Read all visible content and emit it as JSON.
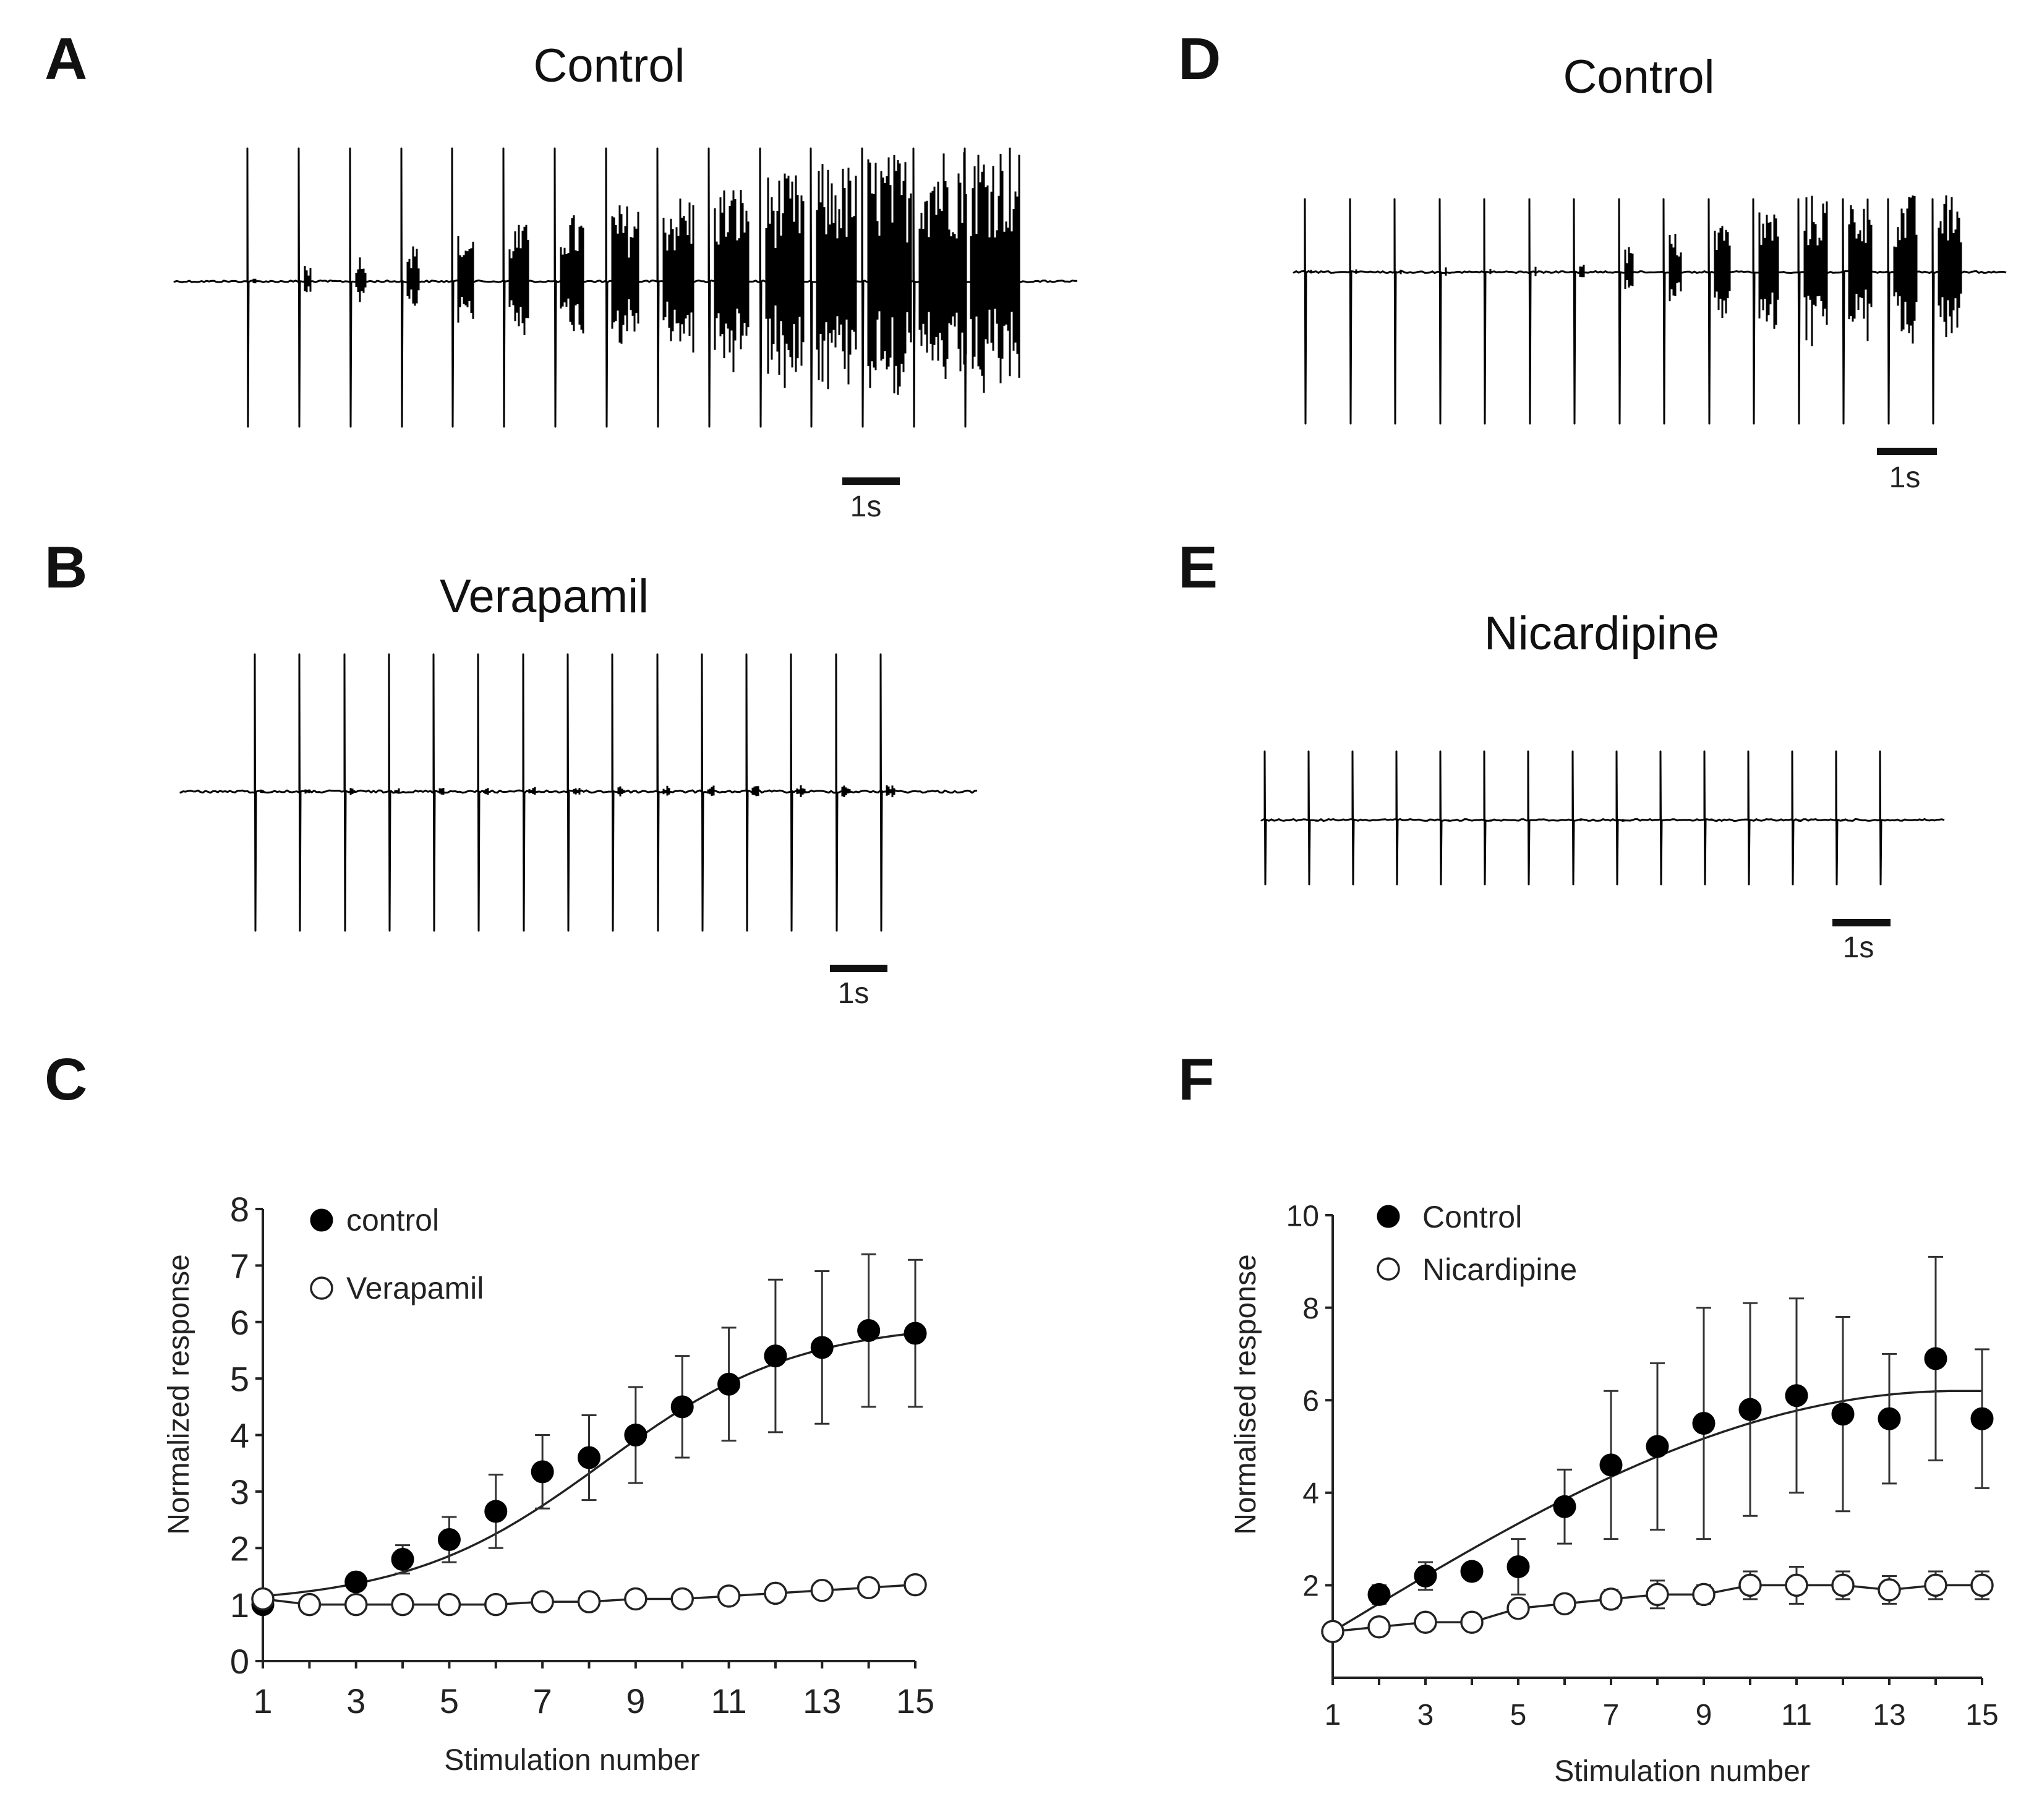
{
  "panels": {
    "A": {
      "letter": "A",
      "title": "Control",
      "scale_label": "1s"
    },
    "B": {
      "letter": "B",
      "title": "Verapamil",
      "scale_label": "1s"
    },
    "C": {
      "letter": "C"
    },
    "D": {
      "letter": "D",
      "title": "Control",
      "scale_label": "1s"
    },
    "E": {
      "letter": "E",
      "title": "Nicardipine",
      "scale_label": "1s"
    },
    "F": {
      "letter": "F"
    }
  },
  "chart_data": [
    {
      "panel": "C",
      "type": "scatter",
      "title": "",
      "xlabel": "Stimulation number",
      "ylabel": "Normalized response",
      "xlim": [
        1,
        15
      ],
      "ylim": [
        0,
        8
      ],
      "xticks": [
        1,
        3,
        5,
        7,
        9,
        11,
        13,
        15
      ],
      "yticks": [
        0,
        1,
        2,
        3,
        4,
        5,
        6,
        7,
        8
      ],
      "legend": "top-left",
      "fit_curve": "sigmoid",
      "x": [
        1,
        2,
        3,
        4,
        5,
        6,
        7,
        8,
        9,
        10,
        11,
        12,
        13,
        14,
        15
      ],
      "series": [
        {
          "name": "control",
          "marker": "filled-circle",
          "values": [
            1.0,
            1.0,
            1.4,
            1.8,
            2.15,
            2.65,
            3.35,
            3.6,
            4.0,
            4.5,
            4.9,
            5.4,
            5.55,
            5.85,
            5.8
          ],
          "errors": [
            0,
            0,
            0,
            0.25,
            0.4,
            0.65,
            0.65,
            0.75,
            0.85,
            0.9,
            1.0,
            1.35,
            1.35,
            1.35,
            1.3
          ]
        },
        {
          "name": "Verapamil",
          "marker": "open-circle",
          "values": [
            1.1,
            1.0,
            1.0,
            1.0,
            1.0,
            1.0,
            1.05,
            1.05,
            1.1,
            1.1,
            1.15,
            1.2,
            1.25,
            1.3,
            1.35
          ],
          "errors": [
            0,
            0,
            0,
            0,
            0,
            0,
            0,
            0,
            0,
            0,
            0,
            0,
            0,
            0,
            0
          ]
        }
      ]
    },
    {
      "panel": "F",
      "type": "scatter",
      "title": "",
      "xlabel": "Stimulation number",
      "ylabel": "Normalised response",
      "xlim": [
        1,
        15
      ],
      "ylim": [
        0,
        10
      ],
      "xticks": [
        1,
        3,
        5,
        7,
        9,
        11,
        13,
        15
      ],
      "yticks": [
        2,
        4,
        6,
        8,
        10
      ],
      "legend": "top-left",
      "fit_curve": "saturating",
      "x": [
        1,
        2,
        3,
        4,
        5,
        6,
        7,
        8,
        9,
        10,
        11,
        12,
        13,
        14,
        15
      ],
      "series": [
        {
          "name": "Control",
          "marker": "filled-circle",
          "values": [
            1.0,
            1.8,
            2.2,
            2.3,
            2.4,
            3.7,
            4.6,
            5.0,
            5.5,
            5.8,
            6.1,
            5.7,
            5.6,
            6.9,
            5.6
          ],
          "errors": [
            0,
            0.2,
            0.3,
            0,
            0.6,
            0.8,
            1.6,
            1.8,
            2.5,
            2.3,
            2.1,
            2.1,
            1.4,
            2.2,
            1.5
          ]
        },
        {
          "name": "Nicardipine",
          "marker": "open-circle",
          "values": [
            1.0,
            1.1,
            1.2,
            1.2,
            1.5,
            1.6,
            1.7,
            1.8,
            1.8,
            2.0,
            2.0,
            2.0,
            1.9,
            2.0,
            2.0
          ],
          "errors": [
            0,
            0,
            0,
            0,
            0,
            0.1,
            0.2,
            0.3,
            0.2,
            0.3,
            0.4,
            0.3,
            0.3,
            0.3,
            0.3
          ]
        }
      ]
    }
  ]
}
